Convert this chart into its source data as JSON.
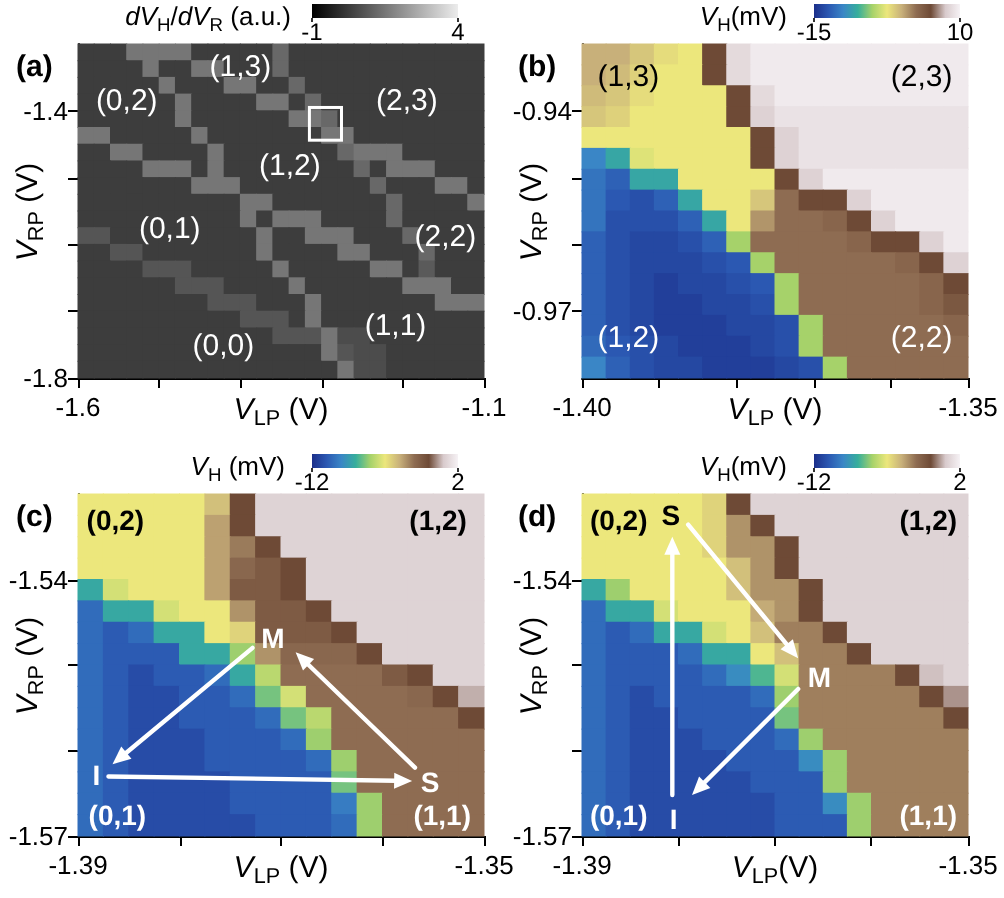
{
  "chart_data": [
    {
      "type": "heatmap",
      "title": "(a)",
      "xlabel": "V$_{LP}$ (V)",
      "ylabel": "V$_{RP}$ (V)",
      "clabel": "dV$_{H}$/dV$_{R}$ (a.u.)",
      "clim": [
        -1,
        4
      ],
      "cticks": [
        -1,
        4
      ],
      "colors": [
        "#000000",
        "#ececec"
      ],
      "xlim": [
        -1.6,
        -1.1
      ],
      "xticks": [
        -1.6,
        {
          "value": -1.5,
          "label": null
        },
        {
          "value": -1.4,
          "label": null
        },
        {
          "value": -1.3,
          "label": null
        },
        {
          "value": -1.2,
          "label": null
        },
        -1.1
      ],
      "ylim": [
        -1.8,
        -1.3
      ],
      "yticks": [
        -1.8,
        {
          "value": -1.7,
          "label": null
        },
        {
          "value": -1.6,
          "label": null
        },
        {
          "value": -1.5,
          "label": null
        },
        -1.4
      ],
      "cells": [
        [
          0.3,
          0.3,
          0.3,
          1.5,
          1.5,
          1.5,
          1.5,
          0.3,
          0.3,
          0.3,
          0.3,
          0.3,
          1.2,
          0.3,
          0.3,
          0.3,
          0.3,
          0.3,
          0.3,
          0.3,
          0.3,
          0.3,
          0.3,
          0.3,
          0.3
        ],
        [
          0.3,
          0.3,
          0.3,
          0.3,
          1.5,
          0.3,
          0.3,
          1.5,
          1.5,
          0.3,
          0.3,
          0.3,
          1.2,
          0.3,
          0.3,
          0.3,
          0.3,
          0.3,
          0.3,
          0.3,
          0.3,
          0.3,
          0.3,
          0.3,
          0.3
        ],
        [
          0.3,
          0.3,
          0.3,
          0.3,
          0.3,
          1.5,
          0.3,
          0.3,
          0.3,
          1.5,
          1.5,
          0.3,
          0.3,
          1.2,
          0.3,
          0.3,
          0.3,
          0.3,
          0.3,
          0.3,
          0.3,
          0.3,
          0.3,
          0.3,
          0.3
        ],
        [
          0.3,
          0.3,
          0.3,
          0.3,
          0.3,
          0.3,
          1.5,
          0.3,
          0.3,
          0.3,
          0.3,
          1.5,
          1.5,
          0.3,
          1.2,
          0.3,
          0.3,
          0.3,
          0.3,
          0.3,
          0.3,
          0.3,
          0.3,
          0.3,
          0.3
        ],
        [
          0.3,
          0.3,
          0.3,
          0.3,
          0.3,
          0.3,
          1.5,
          0.3,
          0.3,
          0.3,
          0.3,
          0.3,
          0.3,
          1.5,
          1.5,
          1.2,
          0.3,
          0.3,
          0.3,
          0.3,
          0.3,
          0.3,
          0.3,
          0.3,
          0.3
        ],
        [
          1.5,
          1.5,
          0.3,
          0.3,
          0.3,
          0.3,
          0.3,
          1.5,
          0.3,
          0.3,
          0.3,
          0.3,
          0.3,
          0.3,
          0.3,
          1.5,
          1.5,
          0.3,
          0.3,
          0.3,
          0.3,
          0.3,
          0.3,
          0.3,
          0.3
        ],
        [
          0.3,
          0.3,
          1.5,
          1.5,
          0.3,
          0.3,
          0.3,
          0.3,
          1.5,
          0.3,
          0.3,
          0.3,
          0.3,
          0.3,
          0.3,
          0.3,
          1.2,
          1.5,
          1.5,
          1.5,
          0.3,
          0.3,
          0.3,
          0.3,
          0.3
        ],
        [
          0.3,
          0.3,
          0.3,
          0.3,
          1.5,
          1.5,
          1.5,
          0.3,
          1.5,
          0.3,
          0.3,
          0.3,
          0.3,
          0.3,
          0.3,
          0.3,
          0.3,
          1.2,
          0.3,
          1.5,
          1.5,
          1.5,
          0.3,
          0.3,
          0.3
        ],
        [
          0.3,
          0.3,
          0.3,
          0.3,
          0.3,
          0.3,
          0.3,
          1.5,
          1.5,
          1.5,
          0.3,
          0.3,
          0.3,
          0.3,
          0.3,
          0.3,
          0.3,
          0.3,
          1.2,
          0.3,
          0.3,
          0.3,
          1.5,
          1.5,
          0.3
        ],
        [
          0.3,
          0.3,
          0.3,
          0.3,
          0.3,
          0.3,
          0.3,
          0.3,
          0.3,
          0.3,
          1.5,
          1.5,
          0.3,
          0.3,
          0.3,
          0.3,
          0.3,
          0.3,
          0.3,
          1.2,
          0.3,
          0.3,
          0.3,
          0.3,
          1.5
        ],
        [
          0.3,
          0.3,
          0.3,
          0.3,
          0.3,
          0.3,
          0.3,
          0.3,
          0.3,
          0.3,
          1.5,
          0.3,
          1.5,
          1.5,
          1.5,
          0.3,
          0.3,
          0.3,
          0.3,
          1.2,
          0.3,
          0.3,
          0.3,
          0.3,
          0.3
        ],
        [
          0.8,
          0.8,
          0.3,
          0.3,
          0.3,
          0.3,
          0.3,
          0.3,
          0.3,
          0.3,
          0.3,
          1.5,
          0.3,
          0.3,
          1.5,
          1.5,
          1.5,
          0.3,
          0.3,
          0.3,
          1.2,
          0.3,
          0.3,
          0.3,
          0.3
        ],
        [
          0.3,
          0.3,
          0.8,
          0.8,
          0.3,
          0.3,
          0.3,
          0.3,
          0.3,
          0.3,
          0.3,
          1.5,
          0.3,
          0.3,
          0.3,
          0.3,
          1.5,
          1.5,
          0.3,
          0.3,
          0.3,
          1.2,
          0.3,
          0.3,
          0.3
        ],
        [
          0.3,
          0.3,
          0.3,
          0.3,
          0.8,
          0.8,
          0.8,
          0.3,
          0.3,
          0.3,
          0.3,
          0.3,
          1.5,
          0.3,
          0.3,
          0.3,
          0.3,
          0.3,
          1.5,
          1.5,
          0.3,
          0.9,
          0.3,
          0.3,
          0.3
        ],
        [
          0.3,
          0.3,
          0.3,
          0.3,
          0.3,
          0.3,
          0.8,
          0.8,
          0.8,
          0.3,
          0.3,
          0.3,
          0.3,
          1.5,
          0.3,
          0.3,
          0.3,
          0.3,
          0.3,
          0.3,
          1.5,
          1.5,
          1.5,
          0.3,
          0.3
        ],
        [
          0.3,
          0.3,
          0.3,
          0.3,
          0.3,
          0.3,
          0.3,
          0.3,
          0.8,
          0.8,
          0.8,
          0.3,
          0.3,
          0.3,
          1.5,
          0.3,
          0.3,
          0.3,
          0.3,
          0.3,
          0.3,
          0.3,
          1.5,
          1.5,
          1.5
        ],
        [
          0.3,
          0.3,
          0.3,
          0.3,
          0.3,
          0.3,
          0.3,
          0.3,
          0.3,
          0.3,
          0.8,
          0.8,
          0.8,
          0.3,
          1.5,
          0.3,
          0.3,
          0.3,
          0.3,
          0.3,
          0.3,
          0.3,
          0.3,
          0.3,
          0.3
        ],
        [
          0.3,
          0.3,
          0.3,
          0.3,
          0.3,
          0.3,
          0.3,
          0.3,
          0.3,
          0.3,
          0.3,
          0.3,
          0.8,
          0.8,
          0.8,
          1.5,
          0.6,
          0.6,
          0.3,
          0.3,
          0.3,
          0.3,
          0.3,
          0.3,
          0.3
        ],
        [
          0.3,
          0.3,
          0.3,
          0.3,
          0.3,
          0.3,
          0.3,
          0.3,
          0.3,
          0.3,
          0.3,
          0.3,
          0.3,
          0.3,
          0.3,
          1.5,
          0.8,
          0.6,
          0.6,
          0.3,
          0.3,
          0.3,
          0.3,
          0.3,
          0.3
        ],
        [
          0.3,
          0.3,
          0.3,
          0.3,
          0.3,
          0.3,
          0.3,
          0.3,
          0.3,
          0.3,
          0.3,
          0.3,
          0.3,
          0.3,
          0.3,
          0.3,
          1.5,
          0.6,
          0.6,
          0.3,
          0.3,
          0.3,
          0.3,
          0.3,
          0.3
        ]
      ],
      "annotations": [
        "(0,2)",
        "(1,3)",
        "(2,3)",
        "(1,2)",
        "(0,1)",
        "(2,2)",
        "(1,1)",
        "(0,0)"
      ]
    },
    {
      "type": "heatmap",
      "title": "(b)",
      "xlabel": "V$_{LP}$ (V)",
      "ylabel": "V$_{RP}$ (V)",
      "clabel": "V$_{H}$(mV)",
      "clim": [
        -15,
        10
      ],
      "cticks": [
        -15,
        10
      ],
      "colors": [
        "#1c2f8a",
        "#2b58b2",
        "#3a86c6",
        "#36ae9c",
        "#a6d26a",
        "#ece77c",
        "#c8b07a",
        "#8e6c52",
        "#6e4a36",
        "#d8cacc",
        "#f6f2f5"
      ],
      "xlim": [
        -1.4,
        -1.35
      ],
      "xticks": [
        {
          "value": -1.4,
          "label": "-1.40"
        },
        {
          "value": -1.39,
          "label": null
        },
        {
          "value": -1.38,
          "label": null
        },
        {
          "value": -1.37,
          "label": null
        },
        {
          "value": -1.36,
          "label": null
        },
        -1.35
      ],
      "ylim": [
        -0.98,
        -0.93
      ],
      "yticks": [
        -0.97,
        {
          "value": -0.96,
          "label": null
        },
        {
          "value": -0.95,
          "label": null
        },
        -0.94
      ],
      "cells": [
        [
          0,
          0,
          -1,
          -2,
          -2.5,
          5,
          8.5,
          9.5,
          9.5,
          9.5,
          9.5,
          9.5,
          9.5,
          9.5,
          9.5,
          9.5
        ],
        [
          0,
          -0.5,
          -1.5,
          -2.5,
          -2.5,
          5,
          8.5,
          9.5,
          9.5,
          9.5,
          9.5,
          9.5,
          9.5,
          9.5,
          9.5,
          9.5
        ],
        [
          -0.5,
          -1,
          -2,
          -2.5,
          -2.5,
          -2.5,
          5,
          8.5,
          9.5,
          9.5,
          9.5,
          9.5,
          9.5,
          9.5,
          9.5,
          9.5
        ],
        [
          -1,
          -1.5,
          -2.5,
          -2.5,
          -2.5,
          -2.5,
          5,
          8,
          9,
          9,
          9,
          9,
          9,
          9,
          9,
          9
        ],
        [
          -2.5,
          -2.5,
          -2.5,
          -2.5,
          -2.5,
          -2.5,
          -2.5,
          5,
          8,
          9,
          9,
          9,
          9,
          9,
          9,
          9
        ],
        [
          -10,
          -8,
          -3,
          -2.5,
          -2.5,
          -2.5,
          -2.5,
          5,
          8,
          9,
          9,
          9,
          9,
          9,
          9,
          9
        ],
        [
          -11,
          -12,
          -8,
          -8,
          -2.5,
          -2.5,
          -2.5,
          -2.5,
          5,
          8,
          9.5,
          9.5,
          9.5,
          9.5,
          9.5,
          9.5
        ],
        [
          -11,
          -12.5,
          -13,
          -12,
          -8,
          -2.5,
          -2.5,
          -1,
          2.5,
          5,
          5,
          8,
          9.5,
          9.5,
          9.5,
          9.5
        ],
        [
          -11,
          -13,
          -13,
          -13,
          -12,
          -8,
          -2.5,
          1,
          2.5,
          2.5,
          3,
          5,
          8,
          9.5,
          9.5,
          9.5
        ],
        [
          -12,
          -13,
          -13.5,
          -13.5,
          -13,
          -12,
          -5,
          2.5,
          2.5,
          2.5,
          2.5,
          3,
          5,
          5,
          8,
          9.5
        ],
        [
          -12,
          -13,
          -13.5,
          -13.5,
          -13.5,
          -13,
          -12.5,
          -5,
          2.5,
          2.5,
          2.5,
          2.5,
          2.5,
          3,
          5,
          8
        ],
        [
          -12,
          -13,
          -13.5,
          -14,
          -13.5,
          -13.5,
          -13,
          -12.5,
          -5,
          2.5,
          2.5,
          2.5,
          2.5,
          2.5,
          3,
          5
        ],
        [
          -12,
          -13,
          -13.5,
          -14,
          -14,
          -13.5,
          -13.5,
          -13,
          -5,
          2.5,
          2.5,
          2.5,
          2.5,
          2.5,
          3,
          4
        ],
        [
          -12,
          -13,
          -13.5,
          -14,
          -14,
          -14,
          -13.5,
          -13.5,
          -13,
          -5,
          2.5,
          2.5,
          2.5,
          2.5,
          2.5,
          3
        ],
        [
          -11.5,
          -12.5,
          -13,
          -13.5,
          -14,
          -14,
          -14,
          -13.5,
          -13,
          -5,
          2.5,
          2.5,
          2.5,
          2.5,
          2.5,
          2.5
        ],
        [
          -10,
          -12,
          -13,
          -13.5,
          -13.5,
          -14,
          -14,
          -14,
          -13.5,
          -13,
          -5,
          2.5,
          2.5,
          2.5,
          2.5,
          2.5
        ]
      ],
      "annotations": [
        "(1,3)",
        "(2,3)",
        "(1,2)",
        "(2,2)"
      ]
    },
    {
      "type": "heatmap",
      "title": "(c)",
      "xlabel": "V$_{LP}$ (V)",
      "ylabel": "V$_{RP}$ (V)",
      "clabel": "V$_{H}$ (mV)",
      "clim": [
        -12,
        2
      ],
      "cticks": [
        -12,
        2
      ],
      "colors": [
        "#1c2f8a",
        "#2b58b2",
        "#3a86c6",
        "#36ae9c",
        "#a6d26a",
        "#ece77c",
        "#c8b07a",
        "#8e6c52",
        "#6e4a36",
        "#d8cacc",
        "#f6f2f5"
      ],
      "xlim": [
        -1.39,
        -1.35
      ],
      "xticks": [
        -1.39,
        {
          "value": -1.38,
          "label": null
        },
        {
          "value": -1.37,
          "label": null
        },
        {
          "value": -1.36,
          "label": null
        },
        -1.35
      ],
      "ylim": [
        -1.57,
        -1.53
      ],
      "yticks": [
        -1.57,
        {
          "value": -1.56,
          "label": null
        },
        {
          "value": -1.55,
          "label": null
        },
        -1.54
      ],
      "cells": [
        [
          -5,
          -5,
          -5,
          -5,
          -5,
          -4,
          -0.8,
          0.9,
          0.9,
          0.9,
          0.9,
          0.9,
          0.9,
          0.9,
          0.9,
          0.9
        ],
        [
          -5,
          -5,
          -5,
          -5,
          -5,
          -3.3,
          -0.8,
          0.9,
          0.9,
          0.9,
          0.9,
          0.9,
          0.9,
          0.9,
          0.9,
          0.9
        ],
        [
          -5,
          -5,
          -5,
          -5,
          -5,
          -3.3,
          -2.5,
          -0.8,
          0.9,
          0.9,
          0.9,
          0.9,
          0.9,
          0.9,
          0.9,
          0.9
        ],
        [
          -5,
          -5,
          -5,
          -5,
          -5,
          -3.3,
          -2,
          -1.5,
          -0.8,
          0.9,
          0.9,
          0.9,
          0.9,
          0.9,
          0.9,
          0.9
        ],
        [
          -8,
          -5.5,
          -5,
          -5,
          -5,
          -3.3,
          -1.5,
          -1.5,
          -0.8,
          0.9,
          0.9,
          0.9,
          0.9,
          0.9,
          0.9,
          0.9
        ],
        [
          -10,
          -8,
          -8,
          -5.5,
          -5,
          -5,
          -3,
          -1.5,
          -1.5,
          -0.8,
          0.9,
          0.9,
          0.9,
          0.9,
          0.9,
          0.9
        ],
        [
          -10,
          -10.5,
          -10,
          -8,
          -8,
          -5,
          -4.5,
          -1.5,
          -1.5,
          -1.5,
          -0.8,
          0.9,
          0.9,
          0.9,
          0.9,
          0.9
        ],
        [
          -10,
          -10.5,
          -10.5,
          -10.5,
          -8,
          -8,
          -6.5,
          -3,
          -2,
          -2,
          -2,
          -0.8,
          0.9,
          0.9,
          0.9,
          0.9
        ],
        [
          -10,
          -10.5,
          -11,
          -10.5,
          -10.5,
          -10,
          -8,
          -6,
          -2.2,
          -2.2,
          -2.2,
          -2.2,
          -1.5,
          -0.8,
          0.9,
          0.9
        ],
        [
          -10,
          -10.5,
          -11,
          -11,
          -10.5,
          -10.5,
          -10,
          -7,
          -5.5,
          -2.2,
          -2.2,
          -2.2,
          -2.2,
          -2,
          -0.8,
          0.3
        ],
        [
          -10,
          -10.5,
          -11,
          -11,
          -10.5,
          -10.5,
          -10.5,
          -10,
          -7,
          -6,
          -2.2,
          -2.2,
          -2.2,
          -2.2,
          -2.2,
          -0.8
        ],
        [
          -10,
          -10.5,
          -11,
          -11,
          -11,
          -10.5,
          -10.5,
          -10.5,
          -10,
          -6.5,
          -2.2,
          -2.2,
          -2.2,
          -2.2,
          -2.2,
          -2.2
        ],
        [
          -10,
          -10.5,
          -11,
          -11,
          -11,
          -10.5,
          -10.5,
          -10.5,
          -10.5,
          -10,
          -6.5,
          -2.2,
          -2.2,
          -2.2,
          -2.2,
          -2.2
        ],
        [
          -10,
          -10.5,
          -11,
          -11,
          -11,
          -11,
          -10.5,
          -10.5,
          -10.5,
          -10.5,
          -7,
          -2.2,
          -2.2,
          -2.2,
          -2.2,
          -2.2
        ],
        [
          -10,
          -10.5,
          -11,
          -11,
          -11,
          -11,
          -10.5,
          -10.5,
          -10.5,
          -10.5,
          -9.5,
          -6.5,
          -2.2,
          -2.2,
          -2.2,
          -2.2
        ],
        [
          -10,
          -10.5,
          -11,
          -11,
          -11,
          -11,
          -11,
          -10.5,
          -10.5,
          -10.5,
          -10,
          -6.5,
          -2.2,
          -2.2,
          -2.2,
          -2.2
        ]
      ],
      "annotations": [
        "(0,2)",
        "(1,2)",
        "(0,1)",
        "(1,1)",
        "M",
        "I",
        "S"
      ]
    },
    {
      "type": "heatmap",
      "title": "(d)",
      "xlabel": "V$_{LP}$(V)",
      "ylabel": "V$_{RP}$ (V)",
      "clabel": "V$_{H}$(mV)",
      "clim": [
        -12,
        2
      ],
      "cticks": [
        -12,
        2
      ],
      "colors": [
        "#1c2f8a",
        "#2b58b2",
        "#3a86c6",
        "#36ae9c",
        "#a6d26a",
        "#ece77c",
        "#c8b07a",
        "#8e6c52",
        "#6e4a36",
        "#d8cacc",
        "#f6f2f5"
      ],
      "xlim": [
        -1.39,
        -1.35
      ],
      "xticks": [
        -1.39,
        {
          "value": -1.38,
          "label": null
        },
        {
          "value": -1.37,
          "label": null
        },
        {
          "value": -1.36,
          "label": null
        },
        -1.35
      ],
      "ylim": [
        -1.57,
        -1.53
      ],
      "yticks": [
        -1.57,
        {
          "value": -1.56,
          "label": null
        },
        {
          "value": -1.55,
          "label": null
        },
        -1.54
      ],
      "cells": [
        [
          -5,
          -5,
          -5,
          -5,
          -5,
          -4.5,
          -0.8,
          0.9,
          0.9,
          0.9,
          0.9,
          0.9,
          0.9,
          0.9,
          0.9,
          0.9
        ],
        [
          -5,
          -5,
          -5,
          -5,
          -5,
          -4.5,
          -3,
          -0.8,
          0.9,
          0.9,
          0.9,
          0.9,
          0.9,
          0.9,
          0.9,
          0.9
        ],
        [
          -5,
          -5,
          -5,
          -5,
          -5,
          -4.5,
          -3,
          -3,
          -0.8,
          0.9,
          0.9,
          0.9,
          0.9,
          0.9,
          0.9,
          0.9
        ],
        [
          -5,
          -5,
          -5,
          -5,
          -5,
          -5,
          -4,
          -3,
          -0.8,
          0.9,
          0.9,
          0.9,
          0.9,
          0.9,
          0.9,
          0.9
        ],
        [
          -8,
          -6.5,
          -5,
          -5,
          -5,
          -5,
          -4,
          -3,
          -3,
          -0.8,
          0.9,
          0.9,
          0.9,
          0.9,
          0.9,
          0.9
        ],
        [
          -10,
          -8,
          -8,
          -5.5,
          -5,
          -5,
          -5,
          -3.5,
          -3,
          -0.8,
          0.9,
          0.9,
          0.9,
          0.9,
          0.9,
          0.9
        ],
        [
          -10,
          -10.5,
          -10,
          -8,
          -8,
          -5.5,
          -5,
          -4,
          -2.6,
          -2.6,
          -0.8,
          0.9,
          0.9,
          0.9,
          0.9,
          0.9
        ],
        [
          -10,
          -10.5,
          -10.5,
          -10.5,
          -10,
          -8,
          -8,
          -5,
          -4,
          -2.6,
          -2.6,
          -0.8,
          0.9,
          0.9,
          0.9,
          0.9
        ],
        [
          -10,
          -10.5,
          -10.5,
          -10.5,
          -10.5,
          -10,
          -9,
          -7.5,
          -5.5,
          -2.6,
          -2.6,
          -2.6,
          -2.6,
          -0.8,
          0.5,
          0.9
        ],
        [
          -10,
          -10.5,
          -11,
          -10.5,
          -10.5,
          -10.5,
          -10.5,
          -10,
          -6.5,
          -2.6,
          -2.6,
          -2.6,
          -2.6,
          -2.6,
          -0.8,
          0
        ],
        [
          -10,
          -10.5,
          -11,
          -11,
          -10.5,
          -10.5,
          -10.5,
          -10.5,
          -7,
          -2.6,
          -2.6,
          -2.6,
          -2.6,
          -2.6,
          -2.6,
          -0.8
        ],
        [
          -10,
          -10.5,
          -11,
          -11,
          -11,
          -10.5,
          -10.5,
          -10.5,
          -10,
          -6.5,
          -2.6,
          -2.6,
          -2.6,
          -2.6,
          -2.6,
          -2.6
        ],
        [
          -10,
          -10.5,
          -11,
          -11,
          -11,
          -11,
          -10.5,
          -10.5,
          -10.5,
          -9,
          -6.5,
          -2.6,
          -2.6,
          -2.6,
          -2.6,
          -2.6
        ],
        [
          -10,
          -10.5,
          -11,
          -11,
          -11,
          -11,
          -11,
          -10.5,
          -10.5,
          -10.5,
          -6.5,
          -2.6,
          -2.6,
          -2.6,
          -2.6,
          -2.6
        ],
        [
          -10,
          -10.5,
          -11,
          -11,
          -11,
          -11,
          -11,
          -11,
          -10.5,
          -10.5,
          -9,
          -6.5,
          -2.6,
          -2.6,
          -2.6,
          -2.6
        ],
        [
          -10,
          -10.5,
          -11,
          -11,
          -11,
          -11,
          -11,
          -11,
          -10.5,
          -10.5,
          -10.5,
          -6.5,
          -2.6,
          -2.6,
          -2.6,
          -2.6
        ]
      ],
      "annotations": [
        "(0,2)",
        "(1,2)",
        "(0,1)",
        "(1,1)",
        "S",
        "M",
        "I"
      ]
    }
  ]
}
